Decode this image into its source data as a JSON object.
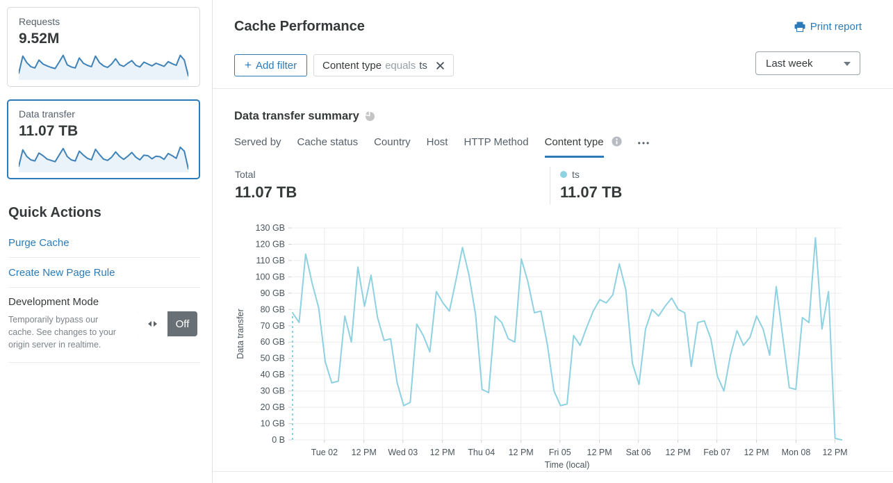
{
  "sidebar": {
    "cards": [
      {
        "label": "Requests",
        "value": "9.52M",
        "selected": false,
        "spark": [
          20,
          85,
          60,
          45,
          40,
          70,
          55,
          48,
          42,
          38,
          62,
          88,
          52,
          44,
          40,
          78,
          58,
          50,
          45,
          85,
          60,
          48,
          42,
          55,
          75,
          52,
          46,
          58,
          68,
          50,
          44,
          62,
          55,
          48,
          58,
          52,
          46,
          64,
          56,
          50,
          88,
          70,
          10
        ]
      },
      {
        "label": "Data transfer",
        "value": "11.07 TB",
        "selected": true,
        "spark": [
          18,
          80,
          55,
          42,
          38,
          68,
          58,
          45,
          40,
          35,
          60,
          85,
          55,
          42,
          38,
          75,
          60,
          48,
          42,
          82,
          62,
          45,
          40,
          52,
          72,
          55,
          44,
          56,
          70,
          52,
          42,
          60,
          58,
          46,
          56,
          54,
          44,
          66,
          58,
          48,
          90,
          75,
          8
        ]
      }
    ],
    "quick_actions": {
      "title": "Quick Actions",
      "links": [
        {
          "label": "Purge Cache"
        },
        {
          "label": "Create New Page Rule"
        }
      ],
      "dev_mode": {
        "title": "Development Mode",
        "description": "Temporarily bypass our cache. See changes to your origin server in realtime.",
        "state": "Off"
      }
    }
  },
  "header": {
    "title": "Cache Performance",
    "print_label": "Print report"
  },
  "filters": {
    "add_icon": "+",
    "add_label": "Add filter",
    "chip": {
      "field": "Content type",
      "operator": "equals",
      "value": "ts"
    },
    "range_selected": "Last week"
  },
  "summary": {
    "title": "Data transfer summary",
    "tabs": [
      {
        "label": "Served by"
      },
      {
        "label": "Cache status"
      },
      {
        "label": "Country"
      },
      {
        "label": "Host"
      },
      {
        "label": "HTTP Method"
      },
      {
        "label": "Content type"
      }
    ],
    "ellipsis_glyph": "•••",
    "total_label": "Total",
    "total_value": "11.07 TB",
    "legend": {
      "name": "ts",
      "value": "11.07 TB",
      "color": "#8ed1e1"
    }
  },
  "chart_data": {
    "type": "line",
    "title": "Data transfer summary — ts",
    "xlabel": "Time (local)",
    "ylabel": "Data transfer",
    "y_unit": "GB",
    "ylim": [
      0,
      130
    ],
    "grid": true,
    "ytick_labels": [
      "0 B",
      "10 GB",
      "20 GB",
      "30 GB",
      "40 GB",
      "50 GB",
      "60 GB",
      "70 GB",
      "80 GB",
      "90 GB",
      "100 GB",
      "110 GB",
      "120 GB",
      "130 GB"
    ],
    "xticks": [
      {
        "label": "Tue 02",
        "pos": 0.058
      },
      {
        "label": "12 PM",
        "pos": 0.13
      },
      {
        "label": "Wed 03",
        "pos": 0.201
      },
      {
        "label": "12 PM",
        "pos": 0.273
      },
      {
        "label": "Thu 04",
        "pos": 0.344
      },
      {
        "label": "12 PM",
        "pos": 0.416
      },
      {
        "label": "Fri 05",
        "pos": 0.487
      },
      {
        "label": "12 PM",
        "pos": 0.559
      },
      {
        "label": "Sat 06",
        "pos": 0.63
      },
      {
        "label": "12 PM",
        "pos": 0.702
      },
      {
        "label": "Feb 07",
        "pos": 0.773
      },
      {
        "label": "12 PM",
        "pos": 0.845
      },
      {
        "label": "Mon 08",
        "pos": 0.917
      },
      {
        "label": "12 PM",
        "pos": 0.988
      }
    ],
    "series": [
      {
        "name": "ts",
        "color": "#8ed1e1",
        "start_dashed": true,
        "interval_hours": 2,
        "values_gb": [
          78,
          72,
          114,
          96,
          81,
          48,
          35,
          36,
          76,
          60,
          106,
          82,
          101,
          75,
          61,
          62,
          35,
          21,
          23,
          71,
          64,
          54,
          91,
          84,
          79,
          98,
          118,
          101,
          77,
          31,
          29,
          76,
          72,
          62,
          60,
          111,
          97,
          78,
          79,
          58,
          30,
          21,
          22,
          64,
          58,
          69,
          79,
          86,
          84,
          89,
          108,
          92,
          47,
          34,
          68,
          80,
          76,
          82,
          87,
          80,
          78,
          45,
          72,
          73,
          62,
          39,
          30,
          52,
          67,
          58,
          63,
          76,
          68,
          52,
          94,
          63,
          32,
          31,
          75,
          72,
          124,
          68,
          91,
          1,
          0
        ]
      }
    ]
  },
  "colors": {
    "accent_blue": "#2c7bb8",
    "chart_line": "#8ed1e1",
    "spark_line": "#3e82b7",
    "toggle_off_bg": "#687076",
    "text_dark": "#36393a",
    "text_gray": "#56606a"
  }
}
